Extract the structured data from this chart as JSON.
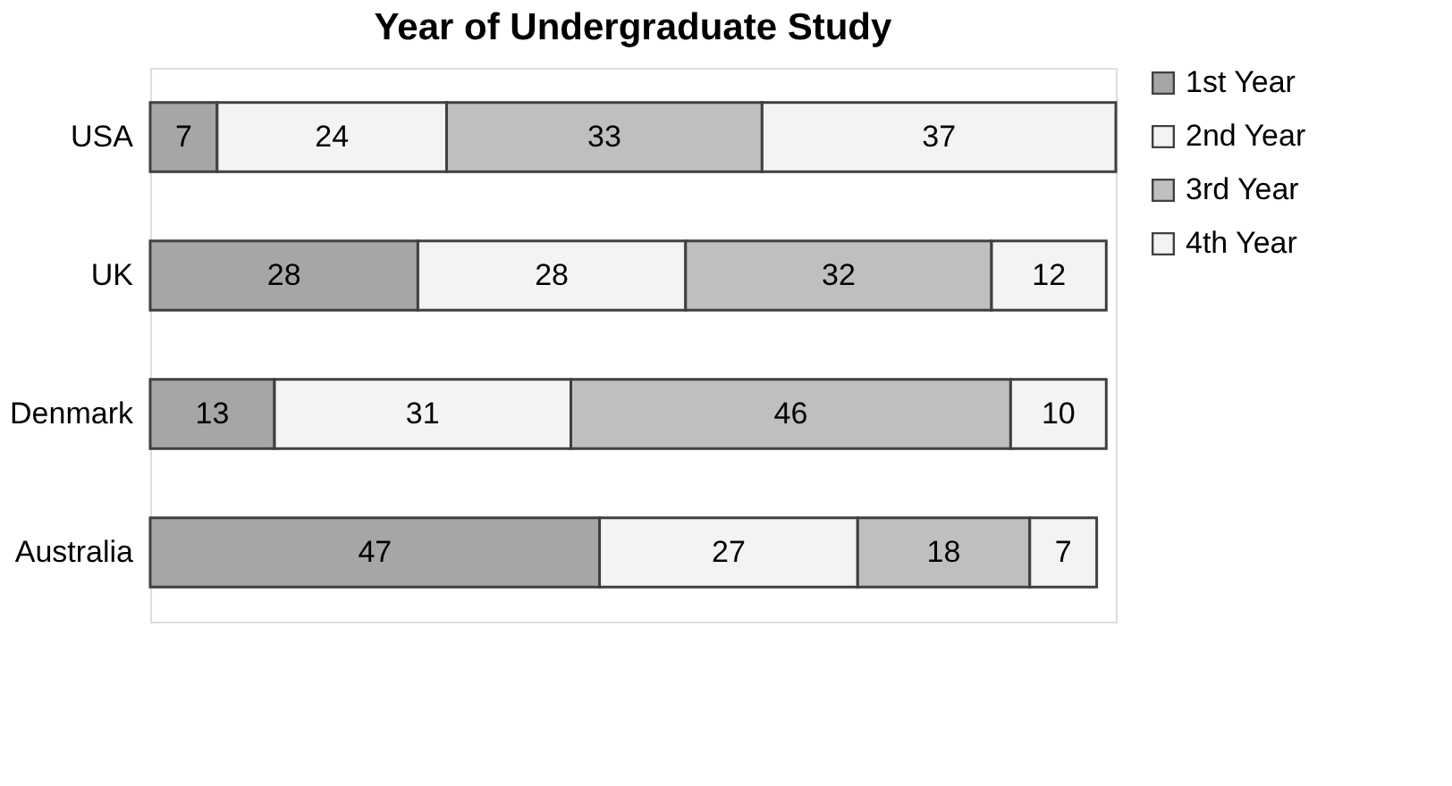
{
  "chart_data": {
    "type": "bar",
    "orientation": "horizontal",
    "stacked": true,
    "title": "Year of Undergraduate Study",
    "categories": [
      "USA",
      "UK",
      "Denmark",
      "Australia"
    ],
    "series": [
      {
        "name": "1st Year",
        "color": "#a6a6a6",
        "values": [
          7,
          28,
          13,
          47
        ]
      },
      {
        "name": "2nd Year",
        "color": "#f2f3f5",
        "values": [
          24,
          28,
          31,
          27
        ]
      },
      {
        "name": "3rd Year",
        "color": "#bfbfbf",
        "values": [
          33,
          32,
          46,
          18
        ]
      },
      {
        "name": "4th Year",
        "color": "#f2f3f5",
        "values": [
          37,
          12,
          10,
          7
        ]
      }
    ],
    "data_labels": true,
    "legend": "right",
    "tick_labels": "y",
    "grid": false
  }
}
